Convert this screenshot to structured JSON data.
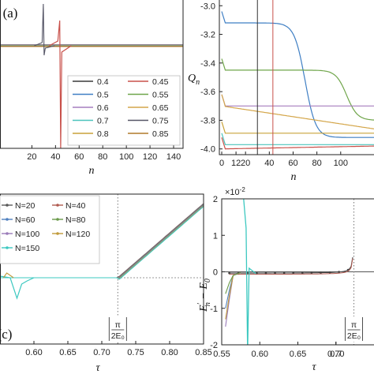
{
  "colors": {
    "0.4": "#3a3a3a",
    "0.45": "#c8504a",
    "0.5": "#3f7fc4",
    "0.55": "#6fa54a",
    "0.6": "#a67fbf",
    "0.65": "#d4a64a",
    "0.7": "#4bc4bc",
    "0.75": "#555566",
    "0.8": "#c8a23a",
    "0.85": "#b07a2a",
    "N=20": "#5a5a5a",
    "N=40": "#b05a50",
    "N=60": "#4f7fbf",
    "N=80": "#6a9a4a",
    "N=100": "#9a7bb8",
    "N=120": "#c09a3a",
    "N=150": "#3cc8c0"
  },
  "chart_data": [
    {
      "id": "a",
      "type": "line",
      "panel_label": "(a)",
      "xlabel": "n",
      "ylabel": "",
      "xlim": [
        -7,
        148
      ],
      "xticks": [
        "20",
        "40",
        "60",
        "80",
        "100",
        "120",
        "140"
      ],
      "legend_position": "lower-right",
      "legend": [
        "0.4",
        "0.45",
        "0.5",
        "0.55",
        "0.6",
        "0.65",
        "0.7",
        "0.75",
        "0.8",
        "0.85"
      ],
      "spikes": [
        {
          "series": "0.75",
          "x": 30,
          "direction": "up-then-down"
        },
        {
          "series": "0.45",
          "x": 44,
          "direction": "up-then-down"
        }
      ]
    },
    {
      "id": "b",
      "type": "line",
      "xlabel": "n",
      "ylabel": "Qn",
      "ylabel_main": "Q",
      "ylabel_sub": "n",
      "xlim": [
        -2,
        128
      ],
      "ylim": [
        -4.04,
        -2.96
      ],
      "xticks": [
        "0",
        "20",
        "40",
        "60",
        "80",
        "100",
        "12"
      ],
      "yticks": [
        "-3.0",
        "-3.2",
        "-3.4",
        "-3.6",
        "-3.8",
        "-4.0"
      ],
      "markers_x": [
        30,
        43
      ],
      "series": [
        {
          "name": "0.5",
          "plateau": -3.12,
          "step_x": 70,
          "end": -3.92
        },
        {
          "name": "0.55",
          "plateau": -3.45,
          "step_x": 105,
          "end": -3.8
        },
        {
          "name": "0.6",
          "plateau": -3.7,
          "step_x": null,
          "end": -3.7
        },
        {
          "name": "0.65",
          "plateau": -3.7,
          "step_x": null,
          "end": -3.86
        },
        {
          "name": "0.8",
          "plateau": -3.89,
          "step_x": null,
          "end": -3.89
        },
        {
          "name": "0.7",
          "plateau": -3.97,
          "step_x": null,
          "end": -3.97
        },
        {
          "name": "0.45",
          "plateau": -4.0,
          "step_x": null,
          "end": -3.98
        }
      ]
    },
    {
      "id": "c",
      "type": "line",
      "panel_label": "(c)",
      "xlabel": "τ",
      "xlim": [
        0.55,
        0.85
      ],
      "xticks": [
        "0.60",
        "0.65",
        "0.70",
        "0.75",
        "0.80",
        "0.85"
      ],
      "annotation": "|π/(2E0)|",
      "annotation_x": 0.7236,
      "legend_position": "upper-left",
      "legend": [
        "N=20",
        "N=40",
        "N=60",
        "N=80",
        "N=100",
        "N=120",
        "N=150"
      ],
      "kink_x": 0.7236
    },
    {
      "id": "d",
      "type": "line",
      "xlabel": "τ",
      "ylabel": "E'n − E0",
      "ylabel_main": "E",
      "ylabel_sup": "′",
      "ylabel_sub": "n",
      "ylabel_rest": " − E",
      "ylabel_sub2": "0",
      "scale_label": "×10-2",
      "xlim": [
        0.55,
        0.75
      ],
      "ylim": [
        -2,
        2
      ],
      "xticks": [
        "0.55",
        "0.60",
        "0.65",
        "0.70",
        "0.7"
      ],
      "yticks": [
        "2",
        "1",
        "0",
        "-1",
        "-2"
      ],
      "annotation": "|π/(2E0)|",
      "annotation_x": 0.7236
    }
  ]
}
